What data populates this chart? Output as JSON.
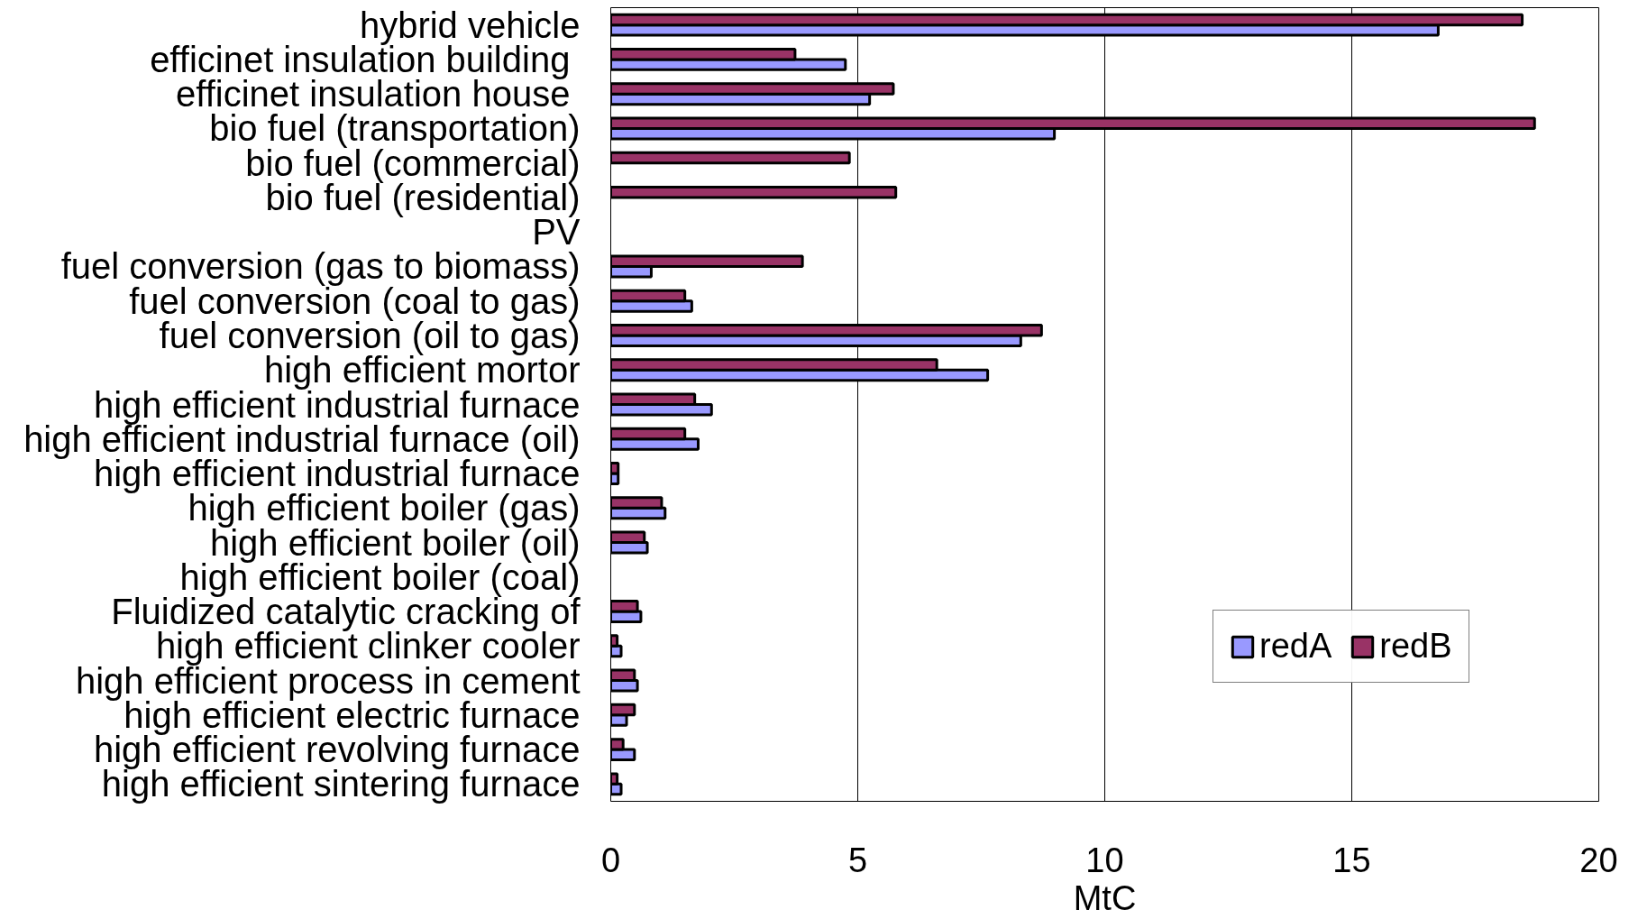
{
  "chart_data": {
    "type": "bar",
    "orientation": "horizontal",
    "xlabel": "MtC",
    "categories": [
      "hybrid vehicle",
      "efficinet insulation  building",
      "efficinet insulation  house",
      "bio fuel (transportation)",
      "bio fuel (commercial)",
      "bio fuel (residential)",
      "PV",
      "fuel conversion (gas to biomass)",
      "fuel conversion (coal to gas)",
      "fuel conversion (oil to gas)",
      "high efficient mortor",
      "high efficient industrial furnace",
      "high efficient industrial furnace (oil)",
      "high efficient industrial furnace",
      "high efficient boiler (gas)",
      "high efficient boiler (oil)",
      "high efficient boiler (coal)",
      "Fluidized catalytic cracking of",
      "high efficient clinker cooler",
      "high efficient process in cement",
      "high efficient electric furnace",
      "high efficient revolving furnace",
      "high efficient sintering furnace"
    ],
    "series": [
      {
        "name": "redA",
        "color": "#9999ff",
        "values": [
          16.75,
          4.75,
          5.24,
          8.98,
          null,
          null,
          null,
          0.82,
          1.64,
          8.3,
          7.63,
          2.04,
          1.77,
          0.15,
          1.1,
          0.74,
          null,
          0.61,
          0.21,
          0.54,
          0.32,
          0.48,
          0.21
        ]
      },
      {
        "name": "redB",
        "color": "#993366",
        "values": [
          18.45,
          3.73,
          5.72,
          18.7,
          4.83,
          5.77,
          null,
          3.88,
          1.5,
          8.72,
          6.6,
          1.7,
          1.5,
          0.15,
          1.03,
          0.68,
          null,
          0.54,
          0.13,
          0.48,
          0.48,
          0.25,
          0.13
        ]
      }
    ],
    "xlim": [
      0,
      20
    ],
    "xticks": [
      0,
      5,
      10,
      15,
      20
    ],
    "grid": "x",
    "legend": "bottom right"
  }
}
